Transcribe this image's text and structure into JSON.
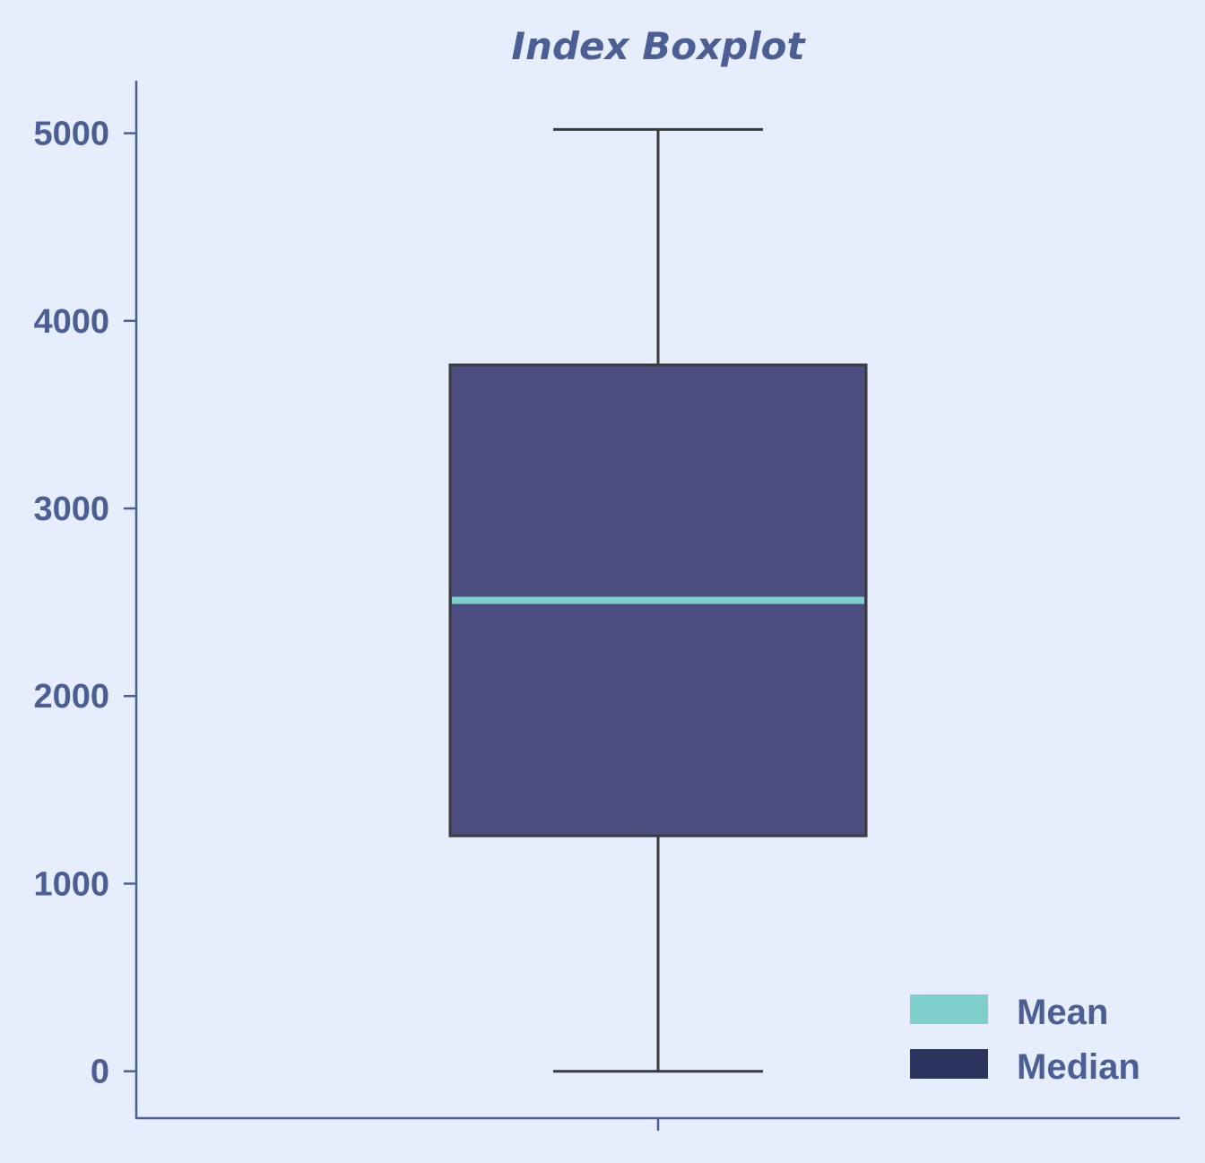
{
  "chart_data": {
    "type": "box",
    "title": "Index Boxplot",
    "xlabel": "",
    "ylabel": "",
    "ylim": [
      -250,
      5280
    ],
    "yticks": [
      0,
      1000,
      2000,
      3000,
      4000,
      5000
    ],
    "grid": false,
    "legend_position": "bottom-right",
    "box": {
      "whisker_low": 0,
      "q1": 1255,
      "median": 2510,
      "q3": 3765,
      "whisker_high": 5020,
      "mean": 2510
    },
    "legend": [
      {
        "label": "Mean",
        "color": "#7ecfcc"
      },
      {
        "label": "Median",
        "color": "#2b345c"
      }
    ],
    "colors": {
      "background": "#e6edfd",
      "axis": "#4c5f95",
      "text": "#4c5f95",
      "box_fill": "#4a4d7d",
      "box_edge": "#3a3a3d",
      "mean_line": "#7ecfcc"
    }
  }
}
